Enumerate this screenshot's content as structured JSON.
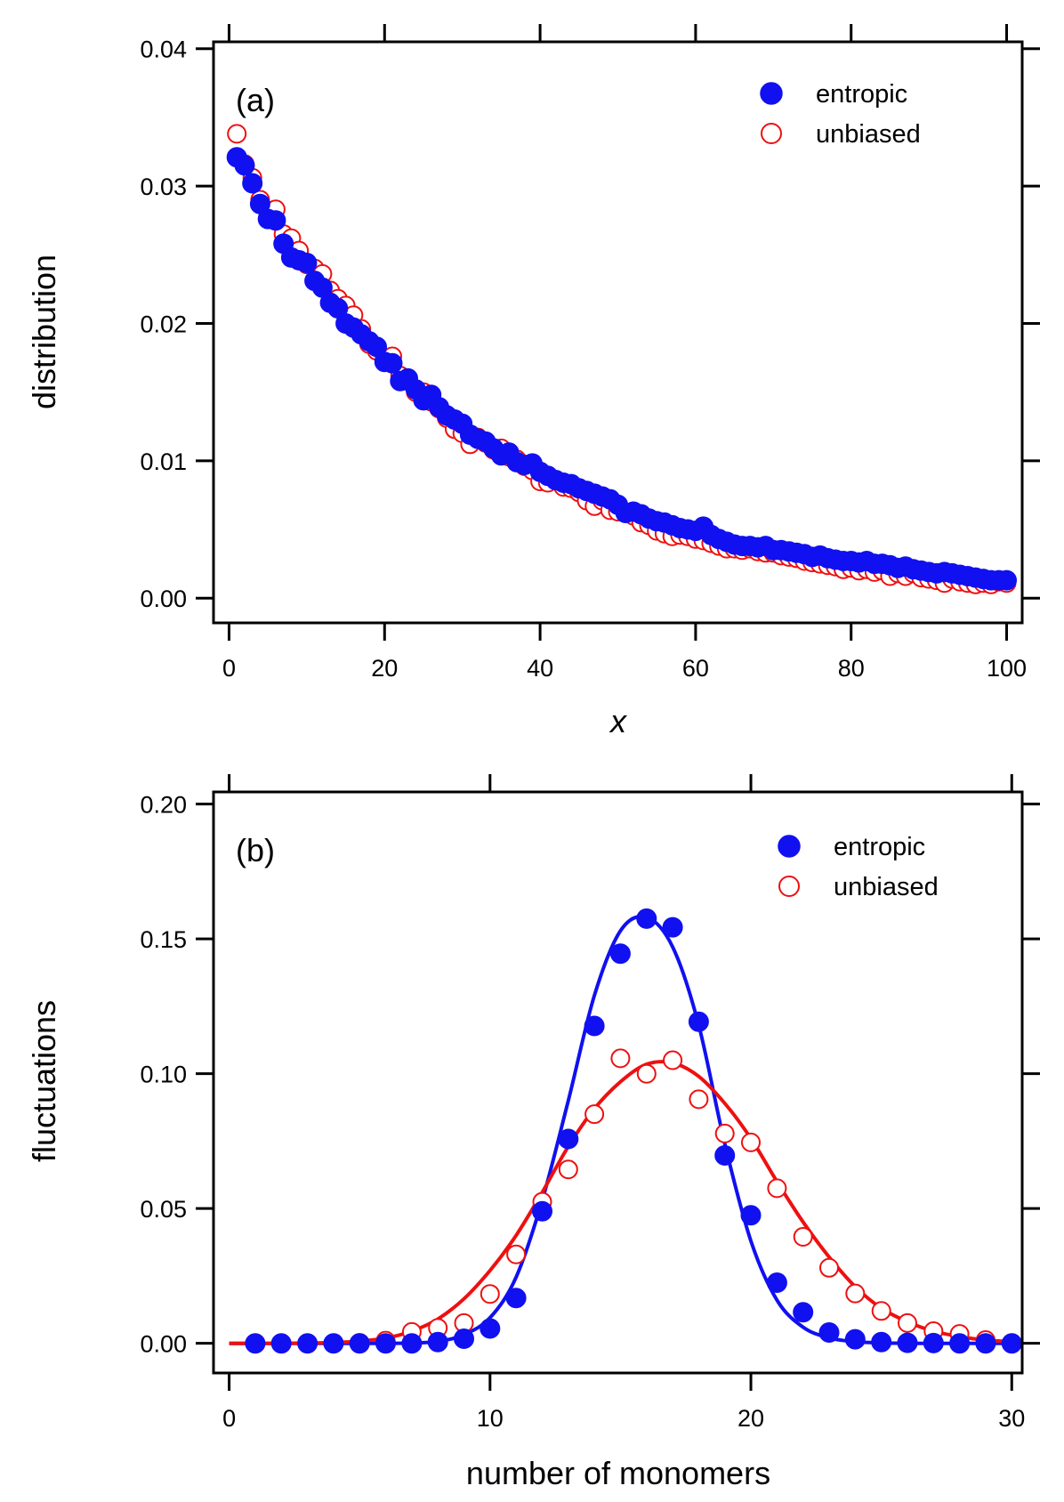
{
  "chart_data": [
    {
      "type": "scatter",
      "panel_label": "(a)",
      "xlabel": "x",
      "ylabel": "distribution",
      "xlim": [
        -2,
        102
      ],
      "ylim": [
        -0.0018,
        0.0405
      ],
      "xticks": [
        0,
        20,
        40,
        60,
        80,
        100
      ],
      "xtick_labels": [
        "0",
        "20",
        "40",
        "60",
        "80",
        "100"
      ],
      "yticks": [
        0.0,
        0.01,
        0.02,
        0.03,
        0.04
      ],
      "ytick_labels": [
        "0.00",
        "0.01",
        "0.02",
        "0.03",
        "0.04"
      ],
      "legend_position": "top-right",
      "series": [
        {
          "name": "entropic",
          "marker": "filled-circle",
          "color": "#1010f0",
          "x": [
            1,
            2,
            3,
            4,
            5,
            6,
            7,
            8,
            9,
            10,
            11,
            12,
            13,
            14,
            15,
            16,
            17,
            18,
            19,
            20,
            21,
            22,
            23,
            24,
            25,
            26,
            27,
            28,
            29,
            30,
            31,
            32,
            33,
            34,
            35,
            36,
            37,
            38,
            39,
            40,
            41,
            42,
            43,
            44,
            45,
            46,
            47,
            48,
            49,
            50,
            51,
            52,
            53,
            54,
            55,
            56,
            57,
            58,
            59,
            60,
            61,
            62,
            63,
            64,
            65,
            66,
            67,
            68,
            69,
            70,
            71,
            72,
            73,
            74,
            75,
            76,
            77,
            78,
            79,
            80,
            81,
            82,
            83,
            84,
            85,
            86,
            87,
            88,
            89,
            90,
            91,
            92,
            93,
            94,
            95,
            96,
            97,
            98,
            99,
            100
          ],
          "y": [
            0.0321,
            0.0315,
            0.0302,
            0.0287,
            0.0276,
            0.0275,
            0.0258,
            0.0248,
            0.0246,
            0.0244,
            0.0231,
            0.0226,
            0.0215,
            0.0211,
            0.02,
            0.0197,
            0.0192,
            0.0187,
            0.0183,
            0.0172,
            0.0171,
            0.0158,
            0.016,
            0.0152,
            0.0144,
            0.0148,
            0.0139,
            0.0133,
            0.013,
            0.0127,
            0.0119,
            0.0116,
            0.0114,
            0.0109,
            0.0104,
            0.0106,
            0.0099,
            0.0097,
            0.0098,
            0.0092,
            0.0089,
            0.0086,
            0.0084,
            0.0083,
            0.008,
            0.0078,
            0.0076,
            0.0074,
            0.0072,
            0.0068,
            0.0062,
            0.0063,
            0.0061,
            0.0058,
            0.0056,
            0.0055,
            0.0053,
            0.0051,
            0.005,
            0.0049,
            0.0052,
            0.0046,
            0.0043,
            0.0041,
            0.0039,
            0.0038,
            0.0038,
            0.0037,
            0.0038,
            0.0035,
            0.0035,
            0.0034,
            0.0033,
            0.0032,
            0.003,
            0.0031,
            0.0029,
            0.0028,
            0.0027,
            0.0027,
            0.0026,
            0.0027,
            0.0025,
            0.0025,
            0.0024,
            0.0022,
            0.0023,
            0.0021,
            0.002,
            0.0019,
            0.0018,
            0.0019,
            0.0018,
            0.0017,
            0.0016,
            0.0015,
            0.0014,
            0.0013,
            0.0013,
            0.0013
          ]
        },
        {
          "name": "unbiased",
          "marker": "open-circle",
          "color": "#ee1010",
          "x": [
            1,
            2,
            3,
            4,
            5,
            6,
            7,
            8,
            9,
            10,
            11,
            12,
            13,
            14,
            15,
            16,
            17,
            18,
            19,
            20,
            21,
            22,
            23,
            24,
            25,
            26,
            27,
            28,
            29,
            30,
            31,
            32,
            33,
            34,
            35,
            36,
            37,
            38,
            39,
            40,
            41,
            42,
            43,
            44,
            45,
            46,
            47,
            48,
            49,
            50,
            51,
            52,
            53,
            54,
            55,
            56,
            57,
            58,
            59,
            60,
            61,
            62,
            63,
            64,
            65,
            66,
            67,
            68,
            69,
            70,
            71,
            72,
            73,
            74,
            75,
            76,
            77,
            78,
            79,
            80,
            81,
            82,
            83,
            84,
            85,
            86,
            87,
            88,
            89,
            90,
            91,
            92,
            93,
            94,
            95,
            96,
            97,
            98,
            99,
            100
          ],
          "y": [
            0.0338,
            0.0316,
            0.0306,
            0.029,
            0.0281,
            0.0283,
            0.0265,
            0.0262,
            0.0253,
            0.0243,
            0.024,
            0.0236,
            0.0224,
            0.0218,
            0.0213,
            0.0206,
            0.0196,
            0.0185,
            0.018,
            0.0175,
            0.0176,
            0.0162,
            0.0158,
            0.015,
            0.015,
            0.0143,
            0.0138,
            0.0131,
            0.0123,
            0.012,
            0.0112,
            0.0117,
            0.0113,
            0.0108,
            0.0109,
            0.0103,
            0.0101,
            0.0096,
            0.0093,
            0.0085,
            0.0084,
            0.0086,
            0.0081,
            0.008,
            0.0077,
            0.0071,
            0.0067,
            0.0071,
            0.0064,
            0.0063,
            0.0062,
            0.006,
            0.0055,
            0.0053,
            0.0049,
            0.0047,
            0.0045,
            0.0046,
            0.0045,
            0.0043,
            0.0042,
            0.004,
            0.0038,
            0.0036,
            0.0036,
            0.0035,
            0.0036,
            0.0034,
            0.0033,
            0.0033,
            0.0031,
            0.003,
            0.0029,
            0.0027,
            0.0026,
            0.0025,
            0.0024,
            0.0023,
            0.0021,
            0.0022,
            0.002,
            0.0021,
            0.0019,
            0.002,
            0.0016,
            0.0018,
            0.0016,
            0.0018,
            0.0015,
            0.0014,
            0.0013,
            0.0011,
            0.0014,
            0.0012,
            0.0011,
            0.001,
            0.0011,
            0.001,
            0.0012,
            0.0011
          ]
        }
      ]
    },
    {
      "type": "scatter",
      "panel_label": "(b)",
      "xlabel": "number of monomers",
      "ylabel": "fluctuations",
      "xlim": [
        -0.6,
        30.4
      ],
      "ylim": [
        -0.011,
        0.2045
      ],
      "xticks": [
        0,
        10,
        20,
        30
      ],
      "xtick_labels": [
        "0",
        "10",
        "20",
        "30"
      ],
      "yticks": [
        0.0,
        0.05,
        0.1,
        0.15,
        0.2
      ],
      "ytick_labels": [
        "0.00",
        "0.05",
        "0.10",
        "0.15",
        "0.20"
      ],
      "legend_position": "top-right",
      "series": [
        {
          "name": "entropic",
          "marker": "filled-circle",
          "color": "#1010f0",
          "x": [
            1,
            2,
            3,
            4,
            5,
            6,
            7,
            8,
            9,
            10,
            11,
            12,
            13,
            14,
            15,
            16,
            17,
            18,
            19,
            20,
            21,
            22,
            23,
            24,
            25,
            26,
            27,
            28,
            29,
            30
          ],
          "y": [
            0.0,
            0.0,
            0.0,
            0.0,
            0.0,
            0.0,
            0.0,
            0.0005,
            0.0017,
            0.0055,
            0.0168,
            0.049,
            0.0758,
            0.1177,
            0.1445,
            0.1575,
            0.1543,
            0.1193,
            0.0697,
            0.0475,
            0.0225,
            0.0115,
            0.004,
            0.0015,
            0.0005,
            0.0002,
            0.0001,
            0.0,
            0.0,
            0.0
          ],
          "fit": {
            "x": [
              0,
              1,
              2,
              3,
              4,
              5,
              6,
              7,
              8,
              9,
              10,
              11,
              12,
              13,
              14,
              15,
              16,
              17,
              18,
              19,
              20,
              21,
              22,
              23,
              24,
              25,
              26,
              27,
              28,
              29,
              30
            ],
            "y": [
              0.0,
              0.0,
              0.0,
              0.0,
              0.0,
              0.0,
              0.0,
              0.0001,
              0.0007,
              0.0032,
              0.0095,
              0.0245,
              0.053,
              0.09,
              0.129,
              0.153,
              0.158,
              0.147,
              0.118,
              0.074,
              0.038,
              0.016,
              0.006,
              0.002,
              0.0006,
              0.0002,
              0.0,
              0.0,
              0.0,
              0.0,
              0.0
            ]
          }
        },
        {
          "name": "unbiased",
          "marker": "open-circle",
          "color": "#ee1010",
          "x": [
            1,
            2,
            3,
            4,
            5,
            6,
            7,
            8,
            9,
            10,
            11,
            12,
            13,
            14,
            15,
            16,
            17,
            18,
            19,
            20,
            21,
            22,
            23,
            24,
            25,
            26,
            27,
            28,
            29,
            30
          ],
          "y": [
            0.0,
            0.0,
            0.0,
            0.0,
            0.0002,
            0.001,
            0.0042,
            0.0057,
            0.0075,
            0.0183,
            0.033,
            0.0525,
            0.0645,
            0.085,
            0.1057,
            0.1,
            0.105,
            0.0905,
            0.0778,
            0.0745,
            0.0575,
            0.0395,
            0.028,
            0.0185,
            0.012,
            0.0075,
            0.0045,
            0.0035,
            0.0012,
            0.0001
          ],
          "fit": {
            "x": [
              0,
              1,
              2,
              3,
              4,
              5,
              6,
              7,
              8,
              9,
              10,
              11,
              12,
              13,
              14,
              15,
              16,
              17,
              18,
              19,
              20,
              21,
              22,
              23,
              24,
              25,
              26,
              27,
              28,
              29,
              30
            ],
            "y": [
              0.0,
              0.0,
              0.0,
              0.0001,
              0.0003,
              0.0008,
              0.0019,
              0.0045,
              0.009,
              0.0165,
              0.027,
              0.04,
              0.056,
              0.073,
              0.087,
              0.097,
              0.1035,
              0.104,
              0.099,
              0.089,
              0.076,
              0.06,
              0.045,
              0.032,
              0.021,
              0.013,
              0.008,
              0.0045,
              0.0025,
              0.0012,
              0.0006
            ]
          }
        }
      ]
    }
  ]
}
